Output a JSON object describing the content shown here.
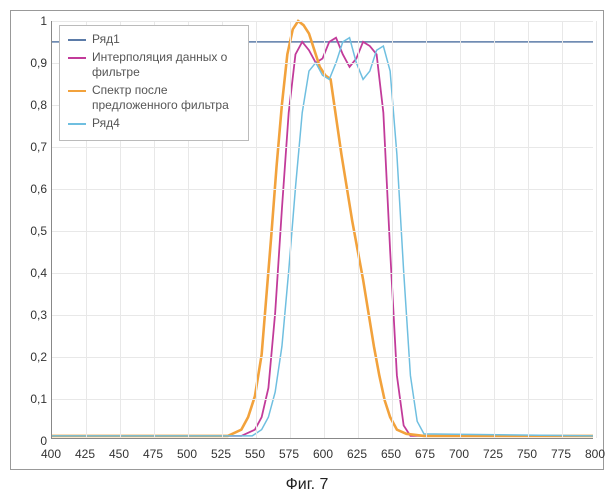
{
  "chart": {
    "type": "line",
    "xlim": [
      400,
      800
    ],
    "ylim": [
      0,
      1
    ],
    "xtick_step": 25,
    "ytick_step": 0.1,
    "xticks": [
      400,
      425,
      450,
      475,
      500,
      525,
      550,
      575,
      600,
      625,
      650,
      675,
      700,
      725,
      750,
      775,
      800
    ],
    "yticks": [
      0,
      0.1,
      0.2,
      0.3,
      0.4,
      0.5,
      0.6,
      0.7,
      0.8,
      0.9,
      1
    ],
    "ytick_labels": [
      "0",
      "0,1",
      "0,2",
      "0,3",
      "0,4",
      "0,5",
      "0,6",
      "0,7",
      "0,8",
      "0,9",
      "1"
    ],
    "background_color": "#ffffff",
    "grid_color": "#e8e8e8",
    "axis_color": "#888888",
    "tick_fontsize": 12,
    "series": [
      {
        "name": "Ряд1",
        "color": "#5b7ba8",
        "line_width": 1.5,
        "points": [
          [
            400,
            0.95
          ],
          [
            555,
            0.95
          ],
          [
            560,
            0.95
          ],
          [
            800,
            0.95
          ]
        ]
      },
      {
        "name": "Интерполяция данных о фильтре",
        "color": "#c23b9a",
        "line_width": 1.8,
        "points": [
          [
            400,
            0.005
          ],
          [
            540,
            0.005
          ],
          [
            550,
            0.02
          ],
          [
            555,
            0.05
          ],
          [
            560,
            0.12
          ],
          [
            565,
            0.3
          ],
          [
            570,
            0.55
          ],
          [
            575,
            0.78
          ],
          [
            580,
            0.92
          ],
          [
            585,
            0.95
          ],
          [
            590,
            0.93
          ],
          [
            595,
            0.9
          ],
          [
            600,
            0.91
          ],
          [
            605,
            0.95
          ],
          [
            610,
            0.96
          ],
          [
            615,
            0.92
          ],
          [
            620,
            0.89
          ],
          [
            625,
            0.91
          ],
          [
            630,
            0.95
          ],
          [
            635,
            0.94
          ],
          [
            640,
            0.92
          ],
          [
            645,
            0.78
          ],
          [
            650,
            0.45
          ],
          [
            655,
            0.15
          ],
          [
            660,
            0.03
          ],
          [
            665,
            0.005
          ],
          [
            800,
            0.005
          ]
        ]
      },
      {
        "name": "Спектр после предложенного фильтра",
        "color": "#f2a23c",
        "line_width": 2.6,
        "points": [
          [
            400,
            0.005
          ],
          [
            530,
            0.005
          ],
          [
            540,
            0.02
          ],
          [
            545,
            0.05
          ],
          [
            550,
            0.1
          ],
          [
            555,
            0.2
          ],
          [
            558,
            0.32
          ],
          [
            562,
            0.48
          ],
          [
            566,
            0.65
          ],
          [
            570,
            0.8
          ],
          [
            574,
            0.92
          ],
          [
            578,
            0.98
          ],
          [
            582,
            1.0
          ],
          [
            586,
            0.99
          ],
          [
            590,
            0.97
          ],
          [
            594,
            0.93
          ],
          [
            598,
            0.89
          ],
          [
            602,
            0.87
          ],
          [
            606,
            0.86
          ],
          [
            610,
            0.77
          ],
          [
            614,
            0.68
          ],
          [
            618,
            0.6
          ],
          [
            622,
            0.52
          ],
          [
            626,
            0.45
          ],
          [
            630,
            0.38
          ],
          [
            634,
            0.3
          ],
          [
            638,
            0.22
          ],
          [
            642,
            0.15
          ],
          [
            646,
            0.09
          ],
          [
            650,
            0.05
          ],
          [
            655,
            0.02
          ],
          [
            662,
            0.01
          ],
          [
            675,
            0.005
          ],
          [
            800,
            0.005
          ]
        ]
      },
      {
        "name": "Ряд4",
        "color": "#6fbfe0",
        "line_width": 1.5,
        "points": [
          [
            400,
            0.005
          ],
          [
            548,
            0.005
          ],
          [
            555,
            0.02
          ],
          [
            560,
            0.05
          ],
          [
            565,
            0.11
          ],
          [
            570,
            0.22
          ],
          [
            575,
            0.4
          ],
          [
            580,
            0.6
          ],
          [
            585,
            0.78
          ],
          [
            590,
            0.88
          ],
          [
            595,
            0.9
          ],
          [
            600,
            0.87
          ],
          [
            605,
            0.86
          ],
          [
            610,
            0.9
          ],
          [
            615,
            0.95
          ],
          [
            620,
            0.96
          ],
          [
            625,
            0.9
          ],
          [
            630,
            0.86
          ],
          [
            635,
            0.88
          ],
          [
            640,
            0.93
          ],
          [
            645,
            0.94
          ],
          [
            650,
            0.88
          ],
          [
            655,
            0.68
          ],
          [
            660,
            0.4
          ],
          [
            665,
            0.15
          ],
          [
            670,
            0.04
          ],
          [
            675,
            0.01
          ],
          [
            800,
            0.005
          ]
        ]
      }
    ],
    "legend_position": "top-left"
  },
  "caption": "Фиг. 7"
}
